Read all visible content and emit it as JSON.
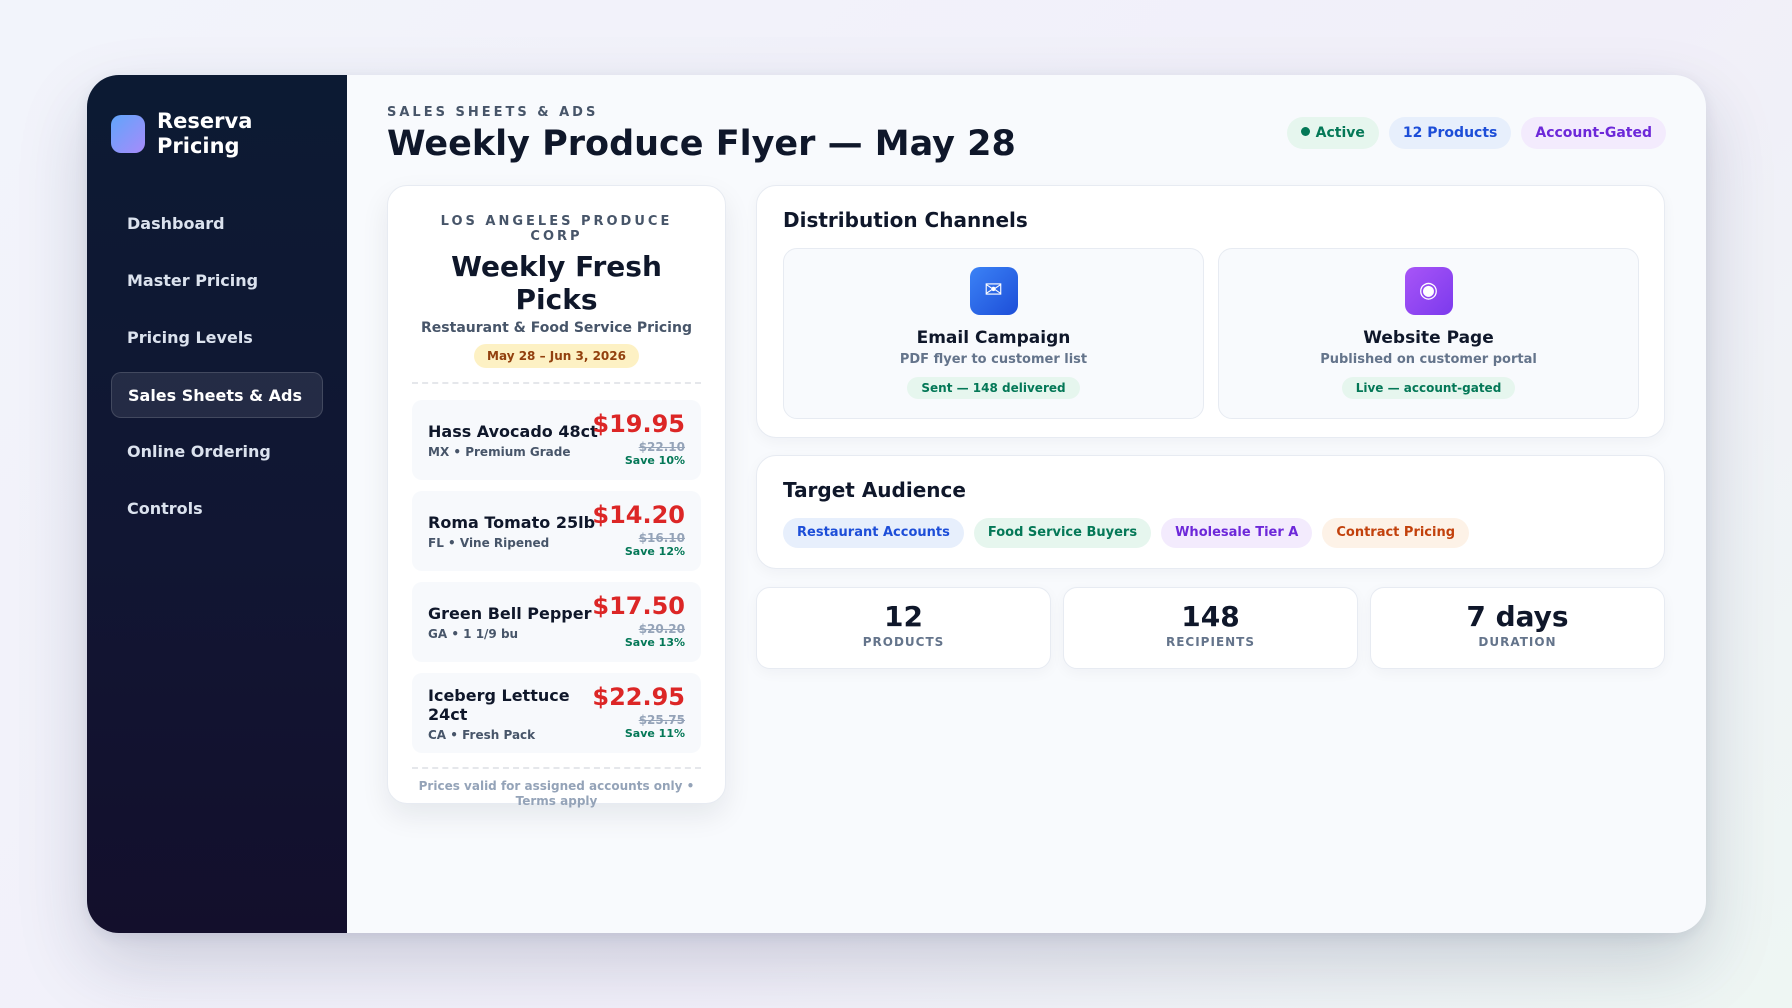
{
  "brand": {
    "name": "Reserva\nPricing"
  },
  "sidebar": {
    "items": [
      {
        "label": "Dashboard"
      },
      {
        "label": "Master Pricing"
      },
      {
        "label": "Pricing Levels"
      },
      {
        "label": "Sales Sheets & Ads",
        "active": true
      },
      {
        "label": "Online Ordering"
      },
      {
        "label": "Controls"
      }
    ]
  },
  "header": {
    "eyebrow": "SALES SHEETS & ADS",
    "title": "Weekly Produce Flyer — May 28",
    "badges": {
      "status": "Active",
      "products": "12 Products",
      "access": "Account-Gated"
    }
  },
  "flyer": {
    "corp": "LOS ANGELES PRODUCE CORP",
    "title": "Weekly Fresh Picks",
    "subtitle": "Restaurant & Food Service Pricing",
    "dates": "May 28 – Jun 3, 2026",
    "products": [
      {
        "name": "Hass Avocado 48ct",
        "meta": "MX • Premium Grade",
        "price": "$19.95",
        "original": "$22.10",
        "save": "Save 10%"
      },
      {
        "name": "Roma Tomato 25lb",
        "meta": "FL • Vine Ripened",
        "price": "$14.20",
        "original": "$16.10",
        "save": "Save 12%"
      },
      {
        "name": "Green Bell Pepper",
        "meta": "GA • 1 1/9 bu",
        "price": "$17.50",
        "original": "$20.20",
        "save": "Save 13%"
      },
      {
        "name": "Iceberg Lettuce 24ct",
        "meta": "CA • Fresh Pack",
        "price": "$22.95",
        "original": "$25.75",
        "save": "Save 11%"
      }
    ],
    "footer": "Prices valid for assigned accounts only • Terms apply"
  },
  "channels": {
    "title": "Distribution Channels",
    "email": {
      "icon": "mail-icon",
      "glyph": "✉",
      "name": "Email Campaign",
      "desc": "PDF flyer to customer list",
      "status": "Sent — 148 delivered"
    },
    "web": {
      "icon": "globe-icon",
      "glyph": "◉",
      "name": "Website Page",
      "desc": "Published on customer portal",
      "status": "Live — account-gated"
    }
  },
  "audience": {
    "title": "Target Audience",
    "tags": [
      "Restaurant Accounts",
      "Food Service Buyers",
      "Wholesale Tier A",
      "Contract Pricing"
    ]
  },
  "stats": [
    {
      "value": "12",
      "label": "PRODUCTS"
    },
    {
      "value": "148",
      "label": "RECIPIENTS"
    },
    {
      "value": "7 days",
      "label": "DURATION"
    }
  ],
  "colors": {
    "accent": "#1d4ed8",
    "price": "#dc2626",
    "success": "#047857",
    "sidebar": "#0c1a33"
  }
}
